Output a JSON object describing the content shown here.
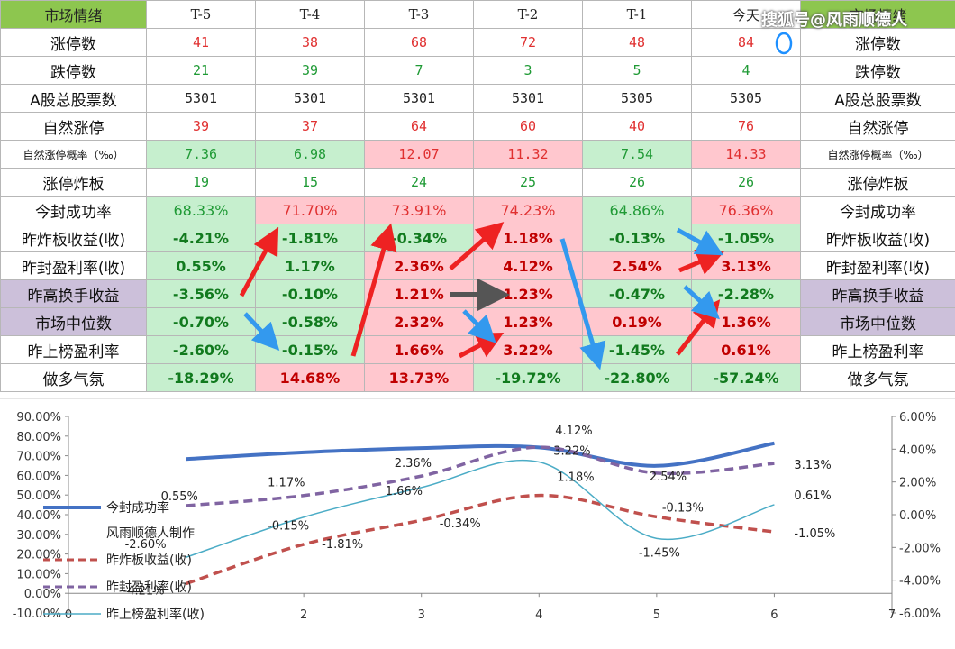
{
  "table": {
    "corner": "市场情绪",
    "columns": [
      "T-5",
      "T-4",
      "T-3",
      "T-2",
      "T-1",
      "今天"
    ],
    "right_header": "市场情绪",
    "rows": [
      {
        "label": "涨停数",
        "right": "涨停数",
        "values": [
          "41",
          "38",
          "68",
          "72",
          "48",
          "84"
        ],
        "color": "red",
        "style": "mono",
        "bgs": [
          "w",
          "w",
          "w",
          "w",
          "w",
          "w"
        ],
        "lbg": "w"
      },
      {
        "label": "跌停数",
        "right": "跌停数",
        "values": [
          "21",
          "39",
          "7",
          "3",
          "5",
          "4"
        ],
        "color": "green",
        "style": "mono",
        "bgs": [
          "w",
          "w",
          "w",
          "w",
          "w",
          "w"
        ],
        "lbg": "w"
      },
      {
        "label": "A股总股票数",
        "right": "A股总股票数",
        "values": [
          "5301",
          "5301",
          "5301",
          "5301",
          "5305",
          "5305"
        ],
        "color": "dark",
        "style": "mono",
        "bgs": [
          "w",
          "w",
          "w",
          "w",
          "w",
          "w"
        ],
        "lbg": "w"
      },
      {
        "label": "自然涨停",
        "right": "自然涨停",
        "values": [
          "39",
          "37",
          "64",
          "60",
          "40",
          "76"
        ],
        "color": "red",
        "style": "mono",
        "bgs": [
          "w",
          "w",
          "w",
          "w",
          "w",
          "w"
        ],
        "lbg": "w"
      },
      {
        "label": "自然涨停概率（‰）",
        "right": "自然涨停概率（‰）",
        "values": [
          "7.36",
          "6.98",
          "12.07",
          "11.32",
          "7.54",
          "14.33"
        ],
        "color": "mixed-gp",
        "style": "mono",
        "bgs": [
          "g",
          "g",
          "p",
          "p",
          "g",
          "p"
        ],
        "lbg": "w",
        "small": true
      },
      {
        "label": "涨停炸板",
        "right": "涨停炸板",
        "values": [
          "19",
          "15",
          "24",
          "25",
          "26",
          "26"
        ],
        "color": "green",
        "style": "mono",
        "bgs": [
          "w",
          "w",
          "w",
          "w",
          "w",
          "w"
        ],
        "lbg": "w"
      },
      {
        "label": "今封成功率",
        "right": "今封成功率",
        "values": [
          "68.33%",
          "71.70%",
          "73.91%",
          "74.23%",
          "64.86%",
          "76.36%"
        ],
        "color": "mixed-gp",
        "style": "normal",
        "bgs": [
          "g",
          "p",
          "p",
          "p",
          "g",
          "p"
        ],
        "lbg": "w"
      },
      {
        "label": "昨炸板收益(收)",
        "right": "昨炸板收益(收)",
        "values": [
          "-4.21%",
          "-1.81%",
          "-0.34%",
          "1.18%",
          "-0.13%",
          "-1.05%"
        ],
        "color": "mixed-gp",
        "style": "bold",
        "bgs": [
          "g",
          "g",
          "g",
          "p",
          "g",
          "g"
        ],
        "lbg": "w"
      },
      {
        "label": "昨封盈利率(收)",
        "right": "昨封盈利率(收)",
        "values": [
          "0.55%",
          "1.17%",
          "2.36%",
          "4.12%",
          "2.54%",
          "3.13%"
        ],
        "color": "mixed-gp",
        "style": "bold",
        "bgs": [
          "g",
          "g",
          "p",
          "p",
          "p",
          "p"
        ],
        "lbg": "w"
      },
      {
        "label": "昨高换手收益",
        "right": "昨高换手收益",
        "values": [
          "-3.56%",
          "-0.10%",
          "1.21%",
          "1.23%",
          "-0.47%",
          "-2.28%"
        ],
        "color": "mixed-gp",
        "style": "bold",
        "bgs": [
          "g",
          "g",
          "p",
          "p",
          "g",
          "g"
        ],
        "lbg": "v"
      },
      {
        "label": "市场中位数",
        "right": "市场中位数",
        "values": [
          "-0.70%",
          "-0.58%",
          "2.32%",
          "1.23%",
          "0.19%",
          "1.36%"
        ],
        "color": "mixed-gp",
        "style": "bold",
        "bgs": [
          "g",
          "g",
          "p",
          "p",
          "p",
          "p"
        ],
        "lbg": "v"
      },
      {
        "label": "昨上榜盈利率",
        "right": "昨上榜盈利率",
        "values": [
          "-2.60%",
          "-0.15%",
          "1.66%",
          "3.22%",
          "-1.45%",
          "0.61%"
        ],
        "color": "mixed-gp",
        "style": "bold",
        "bgs": [
          "g",
          "g",
          "p",
          "p",
          "g",
          "p"
        ],
        "lbg": "w"
      },
      {
        "label": "做多气氛",
        "right": "做多气氛",
        "values": [
          "-18.29%",
          "14.68%",
          "13.73%",
          "-19.72%",
          "-22.80%",
          "-57.24%"
        ],
        "color": "mixed-gp",
        "style": "bold",
        "bgs": [
          "g",
          "p",
          "p",
          "g",
          "g",
          "g"
        ],
        "lbg": "w"
      }
    ]
  },
  "watermark": "搜狐号@风雨顺德人",
  "colors": {
    "green_bg": "#c6efce",
    "pink_bg": "#ffc7ce",
    "violet_bg": "#ccc0da",
    "header_green": "#8dc64f",
    "arrow_red": "#ee2222",
    "arrow_blue": "#3399ee",
    "arrow_gray": "#555555"
  },
  "chart_data": {
    "type": "line",
    "x": [
      1,
      2,
      3,
      4,
      5,
      6
    ],
    "xlim": [
      0,
      7
    ],
    "x_ticks": [
      "0",
      "2",
      "3",
      "4",
      "5",
      "6",
      "7"
    ],
    "y_left_lim": [
      -10,
      90
    ],
    "y_left_ticks": [
      "-10.00%",
      "0.00%",
      "10.00%",
      "20.00%",
      "30.00%",
      "40.00%",
      "50.00%",
      "60.00%",
      "70.00%",
      "80.00%",
      "90.00%"
    ],
    "y_right_lim": [
      -6,
      6
    ],
    "y_right_ticks": [
      "-6.00%",
      "-4.00%",
      "-2.00%",
      "0.00%",
      "2.00%",
      "4.00%",
      "6.00%"
    ],
    "legend": [
      "今封成功率",
      "风雨顺德人制作",
      "昨炸板收益(收)",
      "昨封盈利率(收)",
      "昨上榜盈利率(收)"
    ],
    "series": [
      {
        "name": "今封成功率",
        "axis": "left",
        "values": [
          68.33,
          71.7,
          73.91,
          74.23,
          64.86,
          76.36
        ],
        "color": "#4472c4",
        "dash": "",
        "width": 4,
        "labels": [
          "",
          "",
          "",
          "",
          "",
          ""
        ]
      },
      {
        "name": "昨炸板收益(收)",
        "axis": "right",
        "values": [
          -4.21,
          -1.81,
          -0.34,
          1.18,
          -0.13,
          -1.05
        ],
        "color": "#c0504d",
        "dash": "10,6",
        "width": 3.5,
        "labels": [
          "-4.21%",
          "-1.81%",
          "-0.34%",
          "1.18%",
          "-0.13%",
          "-1.05%"
        ]
      },
      {
        "name": "昨封盈利率(收)",
        "axis": "right",
        "values": [
          0.55,
          1.17,
          2.36,
          4.12,
          2.54,
          3.13
        ],
        "color": "#8064a2",
        "dash": "10,6",
        "width": 3.5,
        "labels": [
          "0.55%",
          "1.17%",
          "2.36%",
          "4.12%",
          "2.54%",
          "3.13%"
        ]
      },
      {
        "name": "昨上榜盈利率(收)",
        "axis": "right",
        "values": [
          -2.6,
          -0.15,
          1.66,
          3.22,
          -1.45,
          0.61
        ],
        "color": "#4bacc6",
        "dash": "",
        "width": 1.5,
        "labels": [
          "-2.60%",
          "-0.15%",
          "1.66%",
          "3.22%",
          "-1.45%",
          "0.61%"
        ]
      }
    ]
  }
}
